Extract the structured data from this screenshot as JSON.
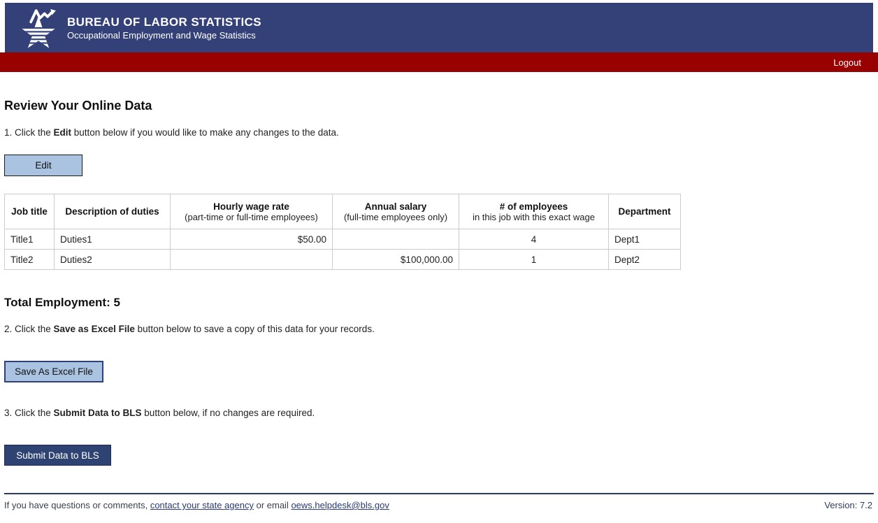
{
  "colors": {
    "header_bg": "#344179",
    "red_bar": "#990000",
    "light_button_bg": "#a9c3e1",
    "submit_button_bg": "#2e4372",
    "footer_rule": "#2b3a67",
    "link": "#283a75",
    "table_border": "#cccccc"
  },
  "header": {
    "title": "BUREAU OF LABOR STATISTICS",
    "subtitle": "Occupational Employment and Wage Statistics",
    "logo": "bls-star-logo"
  },
  "nav": {
    "logout_label": "Logout"
  },
  "main": {
    "heading": "Review Your Online Data",
    "step1": {
      "prefix": "1. Click the ",
      "bold": "Edit",
      "suffix": " button below if you would like to make any changes to the data."
    },
    "edit_button_label": "Edit",
    "table": {
      "columns": [
        {
          "key": "job-title",
          "label": "Job title",
          "sublabel": ""
        },
        {
          "key": "description-of-duties",
          "label": "Description of duties",
          "sublabel": ""
        },
        {
          "key": "hourly-wage-rate",
          "label": "Hourly wage rate",
          "sublabel": "(part-time or full-time employees)"
        },
        {
          "key": "annual-salary",
          "label": "Annual salary",
          "sublabel": "(full-time employees only)"
        },
        {
          "key": "num-employees",
          "label": "# of employees",
          "sublabel": "in this job with this exact wage"
        },
        {
          "key": "department",
          "label": "Department",
          "sublabel": ""
        }
      ],
      "rows": [
        [
          "Title1",
          "Duties1",
          "$50.00",
          "",
          "4",
          "Dept1"
        ],
        [
          "Title2",
          "Duties2",
          "",
          "$100,000.00",
          "1",
          "Dept2"
        ]
      ]
    },
    "total_employment": {
      "label": "Total Employment:",
      "value": "5"
    },
    "step2": {
      "prefix": "2. Click the ",
      "bold": "Save as Excel File",
      "suffix": " button below to save a copy of this data for your records."
    },
    "save_button_label": "Save As Excel File",
    "step3": {
      "prefix": "3. Click the ",
      "bold": "Submit Data to BLS",
      "suffix": " button below, if no changes are required."
    },
    "submit_button_label": "Submit Data to BLS"
  },
  "footer": {
    "prefix": "If you have questions or comments, ",
    "state_agency_link": "contact your state agency",
    "middle": " or email ",
    "email_link": "oews.helpdesk@bls.gov",
    "version_label": "Version: 7.2"
  }
}
